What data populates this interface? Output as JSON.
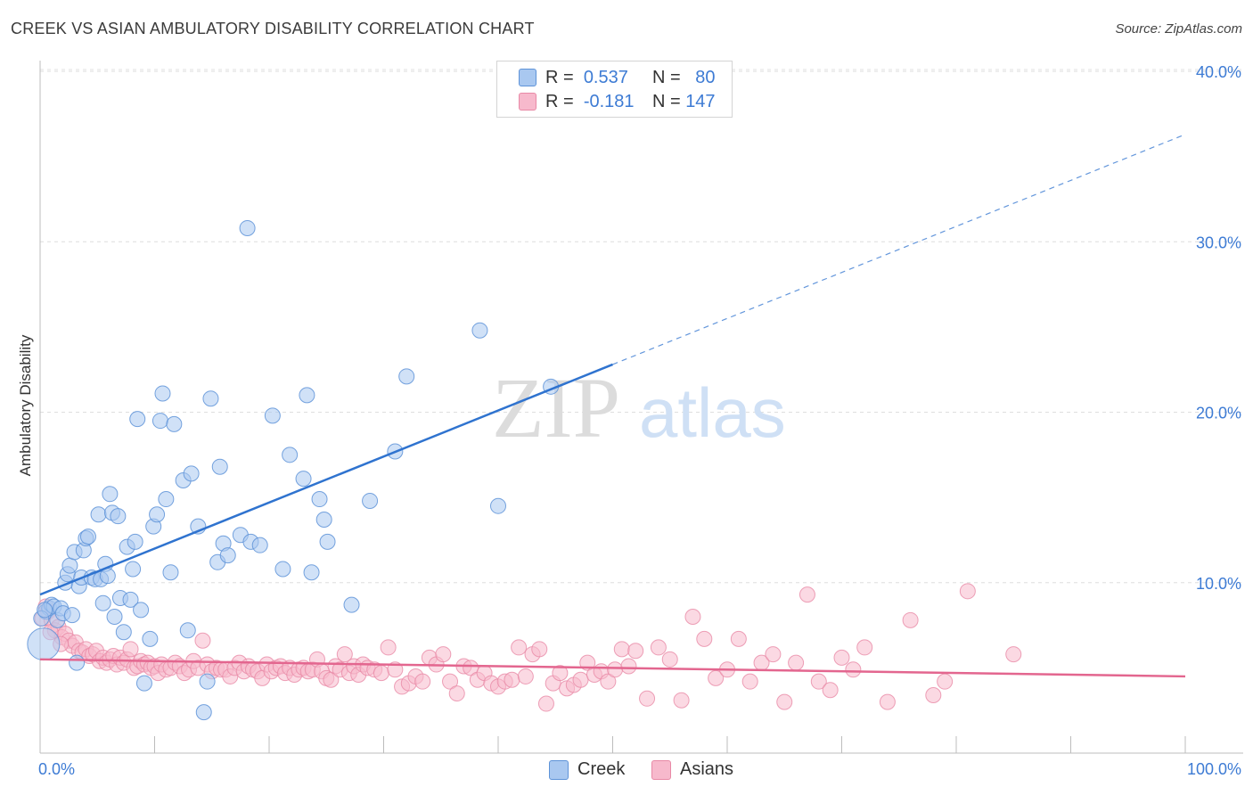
{
  "title": "CREEK VS ASIAN AMBULATORY DISABILITY CORRELATION CHART",
  "source": "Source: ZipAtlas.com",
  "watermark": {
    "zip": "ZIP",
    "atlas": "atlas"
  },
  "legend": {
    "rows": [
      {
        "r_label": "R =",
        "r_value": "0.537",
        "n_label": "N =",
        "n_value": "80"
      },
      {
        "r_label": "R =",
        "r_value": "-0.181",
        "n_label": "N =",
        "n_value": "147"
      }
    ]
  },
  "bottom_legend": {
    "creek": "Creek",
    "asians": "Asians"
  },
  "colors": {
    "creek_fill": "#a9c8f0",
    "creek_stroke": "#5e93d8",
    "creek_line": "#2f73cf",
    "asians_fill": "#f7b9cc",
    "asians_stroke": "#e889a6",
    "asians_line": "#e3668f",
    "tick": "#3d7bd4"
  },
  "chart_data": {
    "type": "scatter",
    "title": "CREEK VS ASIAN AMBULATORY DISABILITY CORRELATION CHART",
    "xlabel": "",
    "ylabel": "Ambulatory Disability",
    "xlim": [
      0,
      100
    ],
    "ylim": [
      0,
      40
    ],
    "x_tick_labels": [
      "0.0%",
      "100.0%"
    ],
    "y_ticks": [
      10,
      20,
      30,
      40
    ],
    "y_tick_labels": [
      "10.0%",
      "20.0%",
      "30.0%",
      "40.0%"
    ],
    "grid": true,
    "legend_position": "top-center",
    "series": [
      {
        "name": "Creek",
        "R": 0.537,
        "N": 80,
        "trend": {
          "x0": 0,
          "y0": 9.3,
          "x1": 50,
          "y1": 22.8,
          "dashed_to_x": 100,
          "dashed_to_y": 36.3
        },
        "points": [
          [
            0.3,
            6.4
          ],
          [
            0.5,
            8.3
          ],
          [
            0.8,
            8.5
          ],
          [
            1.0,
            8.7
          ],
          [
            1.2,
            8.6
          ],
          [
            1.5,
            7.8
          ],
          [
            1.8,
            8.5
          ],
          [
            2.0,
            8.2
          ],
          [
            2.2,
            10.0
          ],
          [
            2.4,
            10.5
          ],
          [
            2.6,
            11.0
          ],
          [
            2.8,
            8.1
          ],
          [
            3.0,
            11.8
          ],
          [
            3.2,
            5.3
          ],
          [
            3.4,
            9.8
          ],
          [
            3.6,
            10.3
          ],
          [
            3.8,
            11.9
          ],
          [
            4.0,
            12.6
          ],
          [
            4.2,
            12.7
          ],
          [
            4.5,
            10.3
          ],
          [
            4.8,
            10.2
          ],
          [
            5.1,
            14.0
          ],
          [
            5.3,
            10.2
          ],
          [
            5.5,
            8.8
          ],
          [
            5.7,
            11.1
          ],
          [
            5.9,
            10.4
          ],
          [
            6.1,
            15.2
          ],
          [
            6.3,
            14.1
          ],
          [
            6.5,
            8.0
          ],
          [
            6.8,
            13.9
          ],
          [
            7.0,
            9.1
          ],
          [
            7.3,
            7.1
          ],
          [
            7.6,
            12.1
          ],
          [
            7.9,
            9.0
          ],
          [
            8.1,
            10.8
          ],
          [
            8.3,
            12.4
          ],
          [
            8.5,
            19.6
          ],
          [
            8.8,
            8.4
          ],
          [
            9.1,
            4.1
          ],
          [
            9.6,
            6.7
          ],
          [
            9.9,
            13.3
          ],
          [
            10.2,
            14.0
          ],
          [
            10.5,
            19.5
          ],
          [
            10.7,
            21.1
          ],
          [
            11.0,
            14.9
          ],
          [
            11.4,
            10.6
          ],
          [
            11.7,
            19.3
          ],
          [
            12.5,
            16.0
          ],
          [
            12.9,
            7.2
          ],
          [
            13.2,
            16.4
          ],
          [
            13.8,
            13.3
          ],
          [
            14.3,
            2.4
          ],
          [
            14.6,
            4.2
          ],
          [
            14.9,
            20.8
          ],
          [
            15.5,
            11.2
          ],
          [
            15.7,
            16.8
          ],
          [
            16.0,
            12.3
          ],
          [
            16.4,
            11.6
          ],
          [
            17.5,
            12.8
          ],
          [
            18.1,
            30.8
          ],
          [
            18.4,
            12.4
          ],
          [
            19.2,
            12.2
          ],
          [
            20.3,
            19.8
          ],
          [
            21.2,
            10.8
          ],
          [
            21.8,
            17.5
          ],
          [
            23.0,
            16.1
          ],
          [
            23.3,
            21.0
          ],
          [
            23.7,
            10.6
          ],
          [
            24.4,
            14.9
          ],
          [
            24.8,
            13.7
          ],
          [
            25.1,
            12.4
          ],
          [
            27.2,
            8.7
          ],
          [
            28.8,
            14.8
          ],
          [
            31.0,
            17.7
          ],
          [
            32.0,
            22.1
          ],
          [
            38.4,
            24.8
          ],
          [
            40.0,
            14.5
          ],
          [
            44.6,
            21.5
          ],
          [
            0.1,
            7.9
          ],
          [
            0.4,
            8.4
          ]
        ]
      },
      {
        "name": "Asians",
        "R": -0.181,
        "N": 147,
        "trend": {
          "x0": 0,
          "y0": 5.5,
          "x1": 100,
          "y1": 4.5
        },
        "points": [
          [
            0.2,
            7.9
          ],
          [
            0.5,
            8.6
          ],
          [
            0.7,
            8.3
          ],
          [
            1.0,
            7.8
          ],
          [
            1.3,
            7.2
          ],
          [
            1.6,
            7.4
          ],
          [
            1.9,
            6.8
          ],
          [
            2.2,
            7.0
          ],
          [
            2.5,
            6.6
          ],
          [
            2.8,
            6.3
          ],
          [
            3.1,
            6.5
          ],
          [
            3.4,
            6.0
          ],
          [
            3.7,
            5.9
          ],
          [
            4.0,
            6.1
          ],
          [
            4.3,
            5.7
          ],
          [
            4.6,
            5.8
          ],
          [
            4.9,
            6.0
          ],
          [
            5.2,
            5.4
          ],
          [
            5.5,
            5.6
          ],
          [
            5.8,
            5.3
          ],
          [
            6.1,
            5.5
          ],
          [
            6.4,
            5.7
          ],
          [
            6.7,
            5.2
          ],
          [
            7.0,
            5.6
          ],
          [
            7.3,
            5.3
          ],
          [
            7.6,
            5.5
          ],
          [
            7.9,
            6.1
          ],
          [
            8.2,
            5.0
          ],
          [
            8.5,
            5.1
          ],
          [
            8.8,
            5.4
          ],
          [
            9.1,
            5.2
          ],
          [
            9.4,
            5.3
          ],
          [
            9.7,
            5.0
          ],
          [
            10.0,
            5.1
          ],
          [
            10.3,
            4.7
          ],
          [
            10.6,
            5.2
          ],
          [
            11.0,
            4.9
          ],
          [
            11.4,
            5.0
          ],
          [
            11.8,
            5.3
          ],
          [
            12.2,
            5.1
          ],
          [
            12.6,
            4.7
          ],
          [
            13.0,
            4.9
          ],
          [
            13.4,
            5.4
          ],
          [
            13.8,
            5.0
          ],
          [
            14.2,
            6.6
          ],
          [
            14.6,
            5.2
          ],
          [
            15.0,
            4.8
          ],
          [
            15.4,
            5.0
          ],
          [
            15.8,
            4.9
          ],
          [
            16.2,
            4.9
          ],
          [
            16.6,
            4.5
          ],
          [
            17.0,
            5.0
          ],
          [
            17.4,
            5.3
          ],
          [
            17.8,
            4.8
          ],
          [
            18.2,
            5.1
          ],
          [
            18.6,
            4.9
          ],
          [
            19.0,
            4.8
          ],
          [
            19.4,
            4.4
          ],
          [
            19.8,
            5.2
          ],
          [
            20.2,
            4.8
          ],
          [
            20.6,
            5.0
          ],
          [
            21.0,
            5.1
          ],
          [
            21.4,
            4.7
          ],
          [
            21.8,
            5.0
          ],
          [
            22.2,
            4.6
          ],
          [
            22.6,
            4.9
          ],
          [
            23.0,
            5.0
          ],
          [
            23.4,
            4.8
          ],
          [
            23.8,
            4.9
          ],
          [
            24.2,
            5.5
          ],
          [
            24.6,
            4.8
          ],
          [
            25.0,
            4.4
          ],
          [
            25.4,
            4.3
          ],
          [
            25.8,
            5.1
          ],
          [
            26.2,
            4.9
          ],
          [
            26.6,
            5.8
          ],
          [
            27.0,
            4.7
          ],
          [
            27.4,
            5.1
          ],
          [
            27.8,
            4.6
          ],
          [
            28.2,
            5.2
          ],
          [
            28.6,
            5.0
          ],
          [
            29.2,
            4.9
          ],
          [
            29.8,
            4.7
          ],
          [
            30.4,
            6.2
          ],
          [
            31.0,
            4.9
          ],
          [
            31.6,
            3.9
          ],
          [
            32.2,
            4.1
          ],
          [
            32.8,
            4.5
          ],
          [
            33.4,
            4.2
          ],
          [
            34.0,
            5.6
          ],
          [
            34.6,
            5.2
          ],
          [
            35.2,
            5.8
          ],
          [
            35.8,
            4.2
          ],
          [
            36.4,
            3.5
          ],
          [
            37.0,
            5.1
          ],
          [
            37.6,
            5.0
          ],
          [
            38.2,
            4.3
          ],
          [
            38.8,
            4.7
          ],
          [
            39.4,
            4.1
          ],
          [
            40.0,
            3.9
          ],
          [
            40.6,
            4.2
          ],
          [
            41.2,
            4.3
          ],
          [
            41.8,
            6.2
          ],
          [
            42.4,
            4.5
          ],
          [
            43.0,
            5.8
          ],
          [
            43.6,
            6.1
          ],
          [
            44.2,
            2.9
          ],
          [
            44.8,
            4.1
          ],
          [
            45.4,
            4.7
          ],
          [
            46.0,
            3.8
          ],
          [
            46.6,
            4.0
          ],
          [
            47.2,
            4.3
          ],
          [
            47.8,
            5.3
          ],
          [
            48.4,
            4.6
          ],
          [
            49.0,
            4.8
          ],
          [
            49.6,
            4.2
          ],
          [
            50.2,
            4.9
          ],
          [
            50.8,
            6.1
          ],
          [
            51.4,
            5.1
          ],
          [
            52.0,
            6.0
          ],
          [
            53.0,
            3.2
          ],
          [
            54.0,
            6.2
          ],
          [
            55.0,
            5.5
          ],
          [
            56.0,
            3.1
          ],
          [
            57.0,
            8.0
          ],
          [
            58.0,
            6.7
          ],
          [
            59.0,
            4.4
          ],
          [
            60.0,
            4.9
          ],
          [
            61.0,
            6.7
          ],
          [
            62.0,
            4.2
          ],
          [
            63.0,
            5.3
          ],
          [
            64.0,
            5.8
          ],
          [
            65.0,
            3.0
          ],
          [
            66.0,
            5.3
          ],
          [
            67.0,
            9.3
          ],
          [
            68.0,
            4.2
          ],
          [
            69.0,
            3.7
          ],
          [
            70.0,
            5.6
          ],
          [
            71.0,
            4.9
          ],
          [
            72.0,
            6.2
          ],
          [
            74.0,
            3.0
          ],
          [
            76.0,
            7.8
          ],
          [
            78.0,
            3.4
          ],
          [
            79.0,
            4.2
          ],
          [
            81.0,
            9.5
          ],
          [
            85.0,
            5.8
          ],
          [
            1.8,
            6.4
          ],
          [
            0.9,
            7.1
          ]
        ]
      }
    ]
  }
}
